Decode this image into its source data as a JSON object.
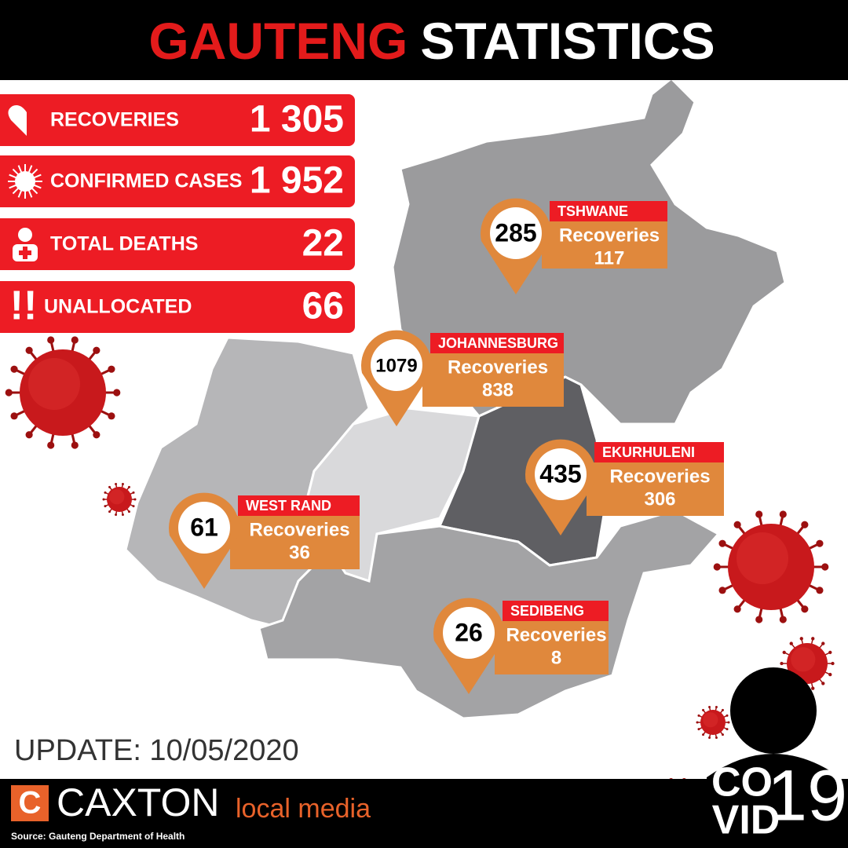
{
  "header": {
    "title_red": "GAUTENG",
    "title_white": "STATISTICS"
  },
  "stats": [
    {
      "label": "RECOVERIES",
      "value": "1 305"
    },
    {
      "label": "CONFIRMED CASES",
      "value": "1 952"
    },
    {
      "label": "TOTAL DEATHS",
      "value": "22"
    },
    {
      "label": "UNALLOCATED",
      "value": "66"
    }
  ],
  "stats_icons": [
    "!!"
  ],
  "regions": [
    {
      "name": "TSHWANE",
      "cases": "285",
      "recoveries_label": "Recoveries",
      "recoveries": "117"
    },
    {
      "name": "JOHANNESBURG",
      "cases": "1079",
      "recoveries_label": "Recoveries",
      "recoveries": "838"
    },
    {
      "name": "EKURHULENI",
      "cases": "435",
      "recoveries_label": "Recoveries",
      "recoveries": "306"
    },
    {
      "name": "WEST RAND",
      "cases": "61",
      "recoveries_label": "Recoveries",
      "recoveries": "36"
    },
    {
      "name": "SEDIBENG",
      "cases": "26",
      "recoveries_label": "Recoveries",
      "recoveries": "8"
    }
  ],
  "update": "UPDATE: 10/05/2020",
  "brand": {
    "name": "CAXTON",
    "tagline": "local media",
    "source": "Source: Gauteng Department of Health"
  },
  "covid": {
    "line1": "CO",
    "line2": "VID",
    "number": "19"
  }
}
